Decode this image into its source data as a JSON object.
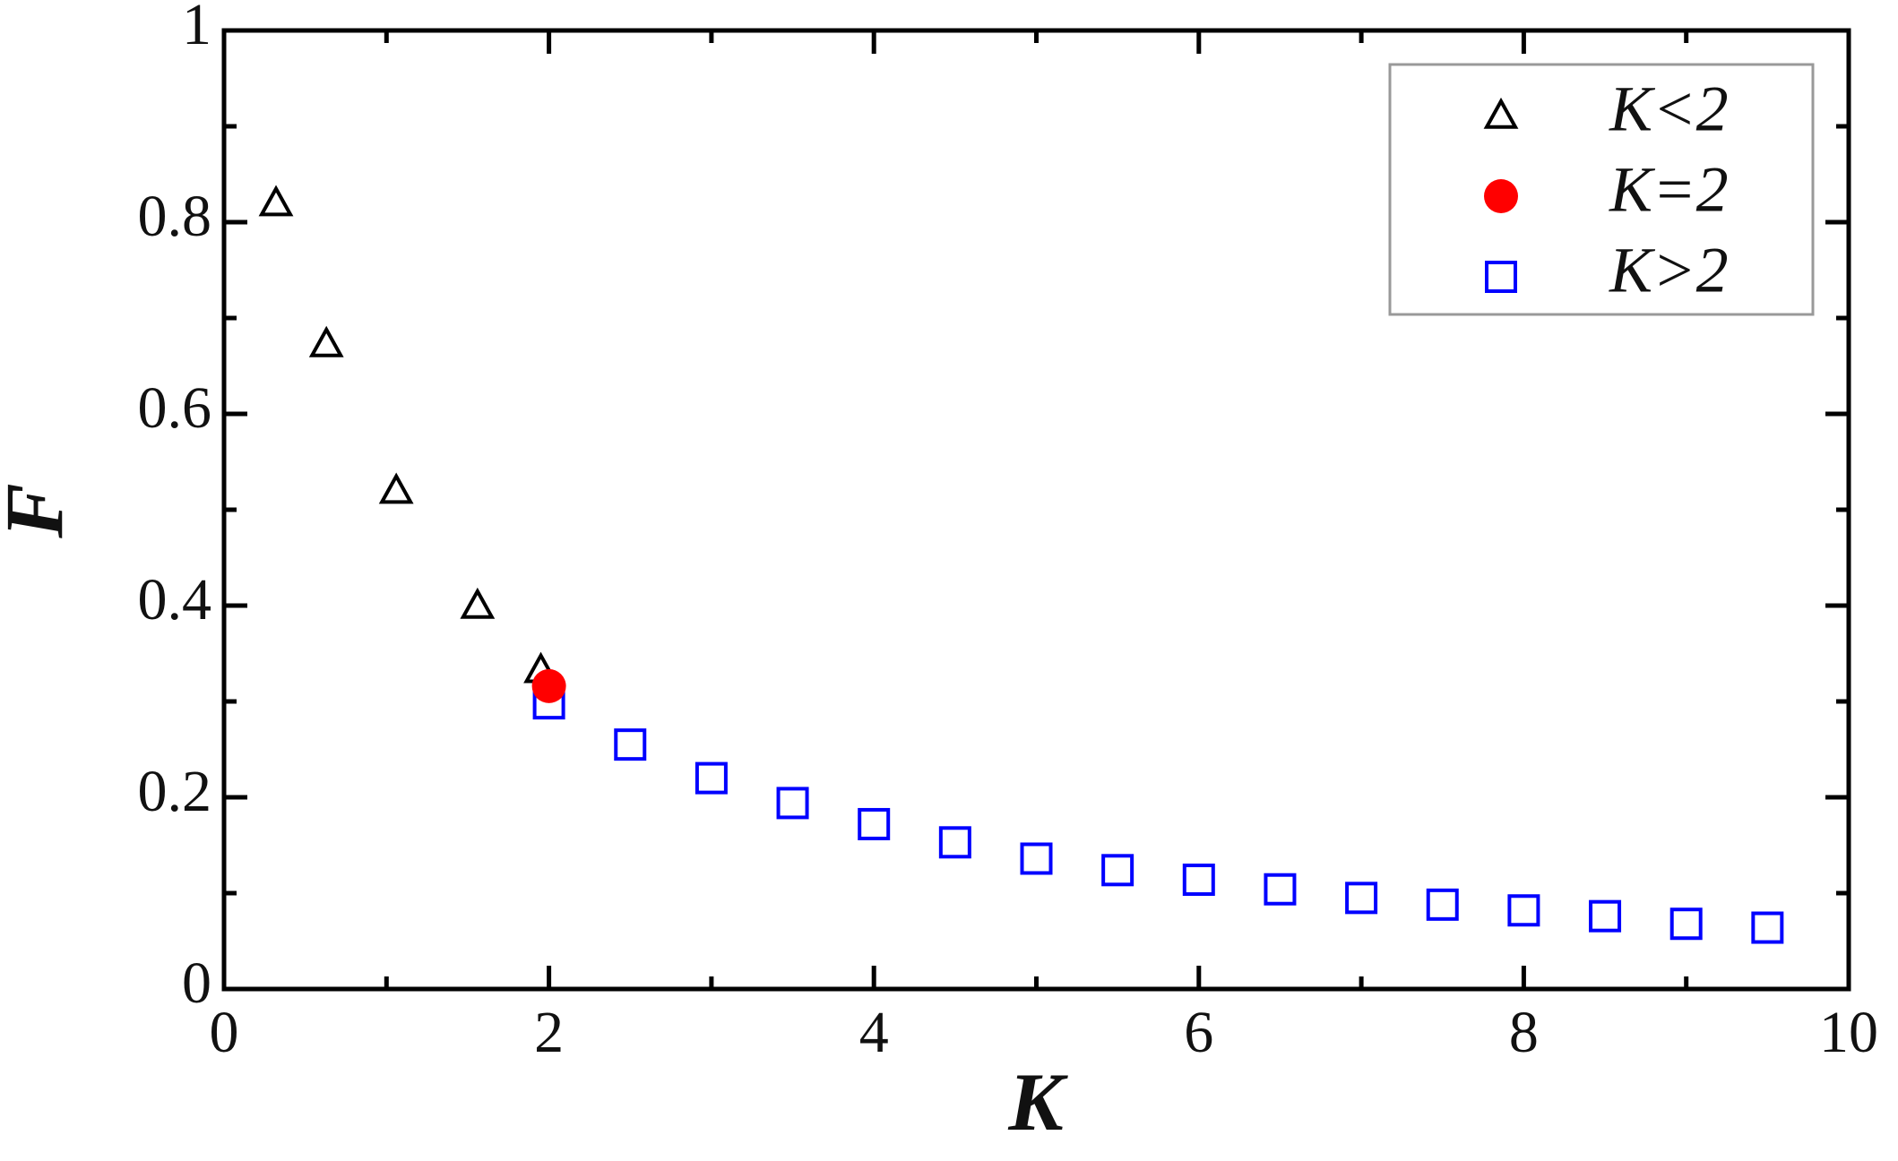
{
  "chart_data": {
    "type": "scatter",
    "xlabel": "K",
    "ylabel": "F",
    "xlim": [
      0,
      10
    ],
    "xticks": [
      0,
      2,
      4,
      6,
      8,
      10
    ],
    "xminorticks": [
      1,
      3,
      5,
      7,
      9
    ],
    "ylim": [
      0,
      1
    ],
    "yticks": [
      0,
      0.2,
      0.4,
      0.6,
      0.8,
      1
    ],
    "yminorticks": [
      0.1,
      0.3,
      0.5,
      0.7,
      0.9
    ],
    "legend": "upper right",
    "series": [
      {
        "name": "K<2",
        "color": "#000000",
        "marker": "triangle",
        "x": [
          0.32,
          0.63,
          1.06,
          1.56,
          1.95
        ],
        "values": [
          0.82,
          0.673,
          0.52,
          0.4,
          0.333
        ]
      },
      {
        "name": "K=2",
        "color": "#ff0000",
        "marker": "circle",
        "x": [
          2
        ],
        "values": [
          0.316
        ]
      },
      {
        "name": "K>2",
        "color": "#0000ff",
        "marker": "square",
        "x": [
          2,
          2.5,
          3,
          3.5,
          4,
          4.5,
          5,
          5.5,
          6,
          6.5,
          7,
          7.5,
          8,
          8.5,
          9,
          9.5
        ],
        "values": [
          0.298,
          0.255,
          0.22,
          0.194,
          0.172,
          0.153,
          0.136,
          0.124,
          0.114,
          0.104,
          0.095,
          0.088,
          0.082,
          0.076,
          0.068,
          0.064
        ]
      }
    ]
  }
}
